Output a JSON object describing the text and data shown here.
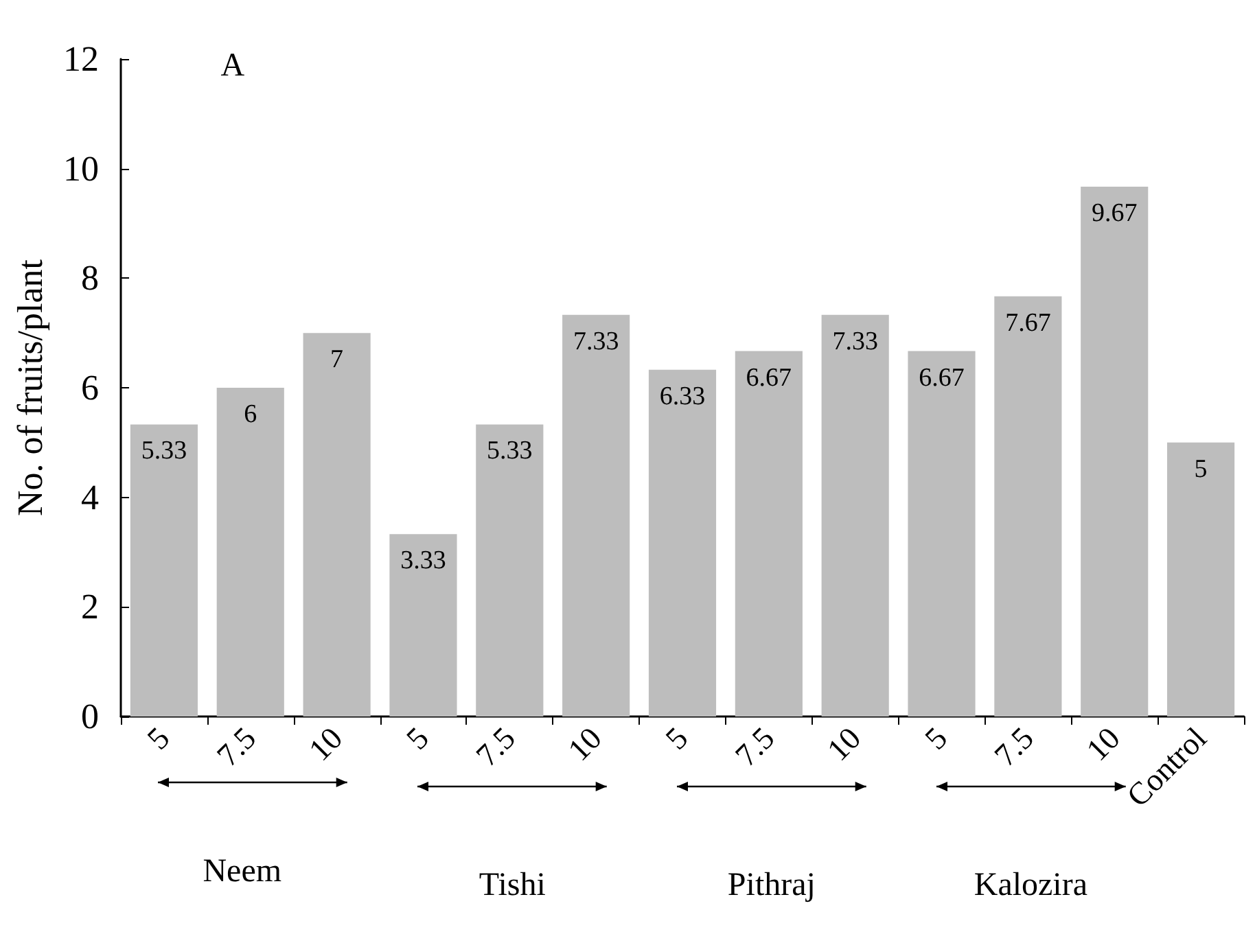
{
  "chart_data": {
    "type": "bar",
    "ylabel": "No. of fruits/plant",
    "categories": [
      "5",
      "7.5",
      "10",
      "5",
      "7.5",
      "10",
      "5",
      "7.5",
      "10",
      "5",
      "7.5",
      "10",
      "Control"
    ],
    "values": [
      5.33,
      6,
      7,
      3.33,
      5.33,
      7.33,
      6.33,
      6.67,
      7.33,
      6.67,
      7.67,
      9.67,
      5
    ],
    "color": "#bdbdbd",
    "ylim": [
      0,
      12
    ],
    "yticks": [
      0,
      2,
      4,
      6,
      8,
      10,
      12
    ],
    "grid": false,
    "data_labels": true,
    "annotations": [
      "A",
      "Neem",
      "Tishi",
      "Pithraj",
      "Kalozira"
    ]
  }
}
